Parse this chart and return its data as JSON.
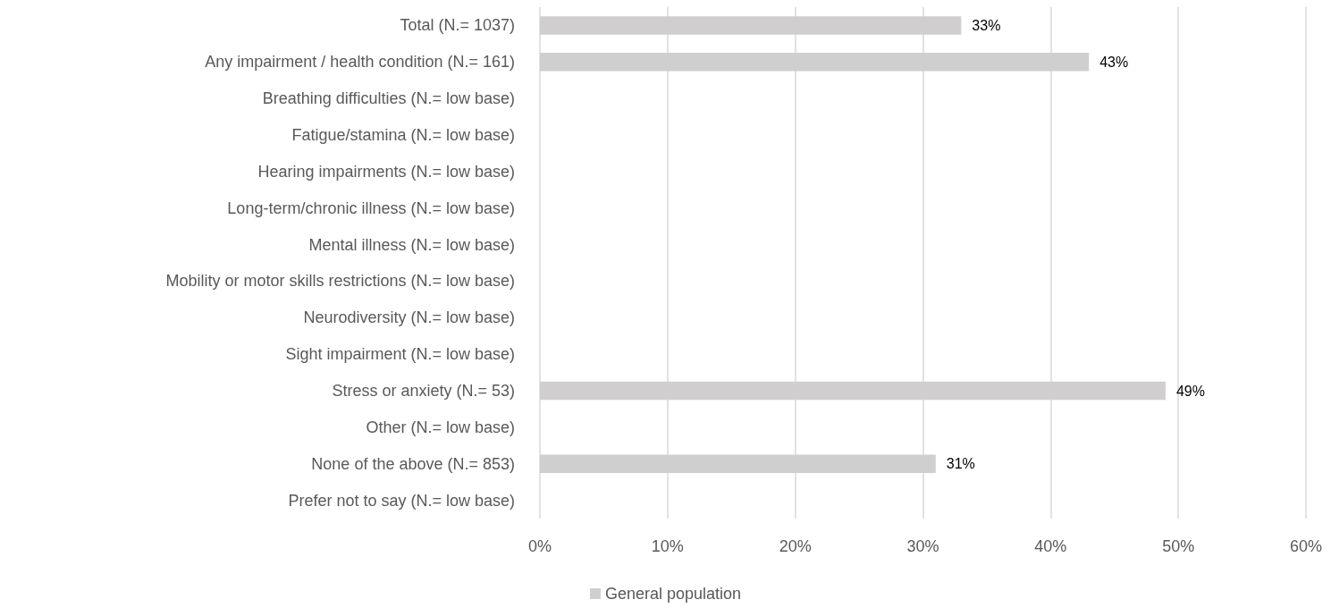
{
  "chart_data": {
    "type": "bar",
    "orientation": "horizontal",
    "categories": [
      "Total (N.= 1037)",
      "Any impairment / health condition (N.= 161)",
      "Breathing difficulties (N.= low base)",
      "Fatigue/stamina (N.= low base)",
      "Hearing impairments (N.= low base)",
      "Long-term/chronic illness (N.= low base)",
      "Mental illness (N.= low base)",
      "Mobility or motor skills restrictions (N.= low base)",
      "Neurodiversity (N.= low base)",
      "Sight impairment (N.= low base)",
      "Stress or anxiety (N.= 53)",
      "Other (N.= low base)",
      "None of the above (N.= 853)",
      "Prefer not to say (N.= low base)"
    ],
    "series": [
      {
        "name": "General population",
        "color": "#d0cece",
        "values": [
          33,
          43,
          null,
          null,
          null,
          null,
          null,
          null,
          null,
          null,
          49,
          null,
          31,
          null
        ],
        "value_labels": [
          "33%",
          "43%",
          null,
          null,
          null,
          null,
          null,
          null,
          null,
          null,
          "49%",
          null,
          "31%",
          null
        ]
      }
    ],
    "xlim": [
      0,
      60
    ],
    "xticks": [
      {
        "value": 0,
        "label": "0%"
      },
      {
        "value": 10,
        "label": "10%"
      },
      {
        "value": 20,
        "label": "20%"
      },
      {
        "value": 30,
        "label": "30%"
      },
      {
        "value": 40,
        "label": "40%"
      },
      {
        "value": 50,
        "label": "50%"
      },
      {
        "value": 60,
        "label": "60%"
      }
    ],
    "grid": "x",
    "legend": "bottom"
  }
}
